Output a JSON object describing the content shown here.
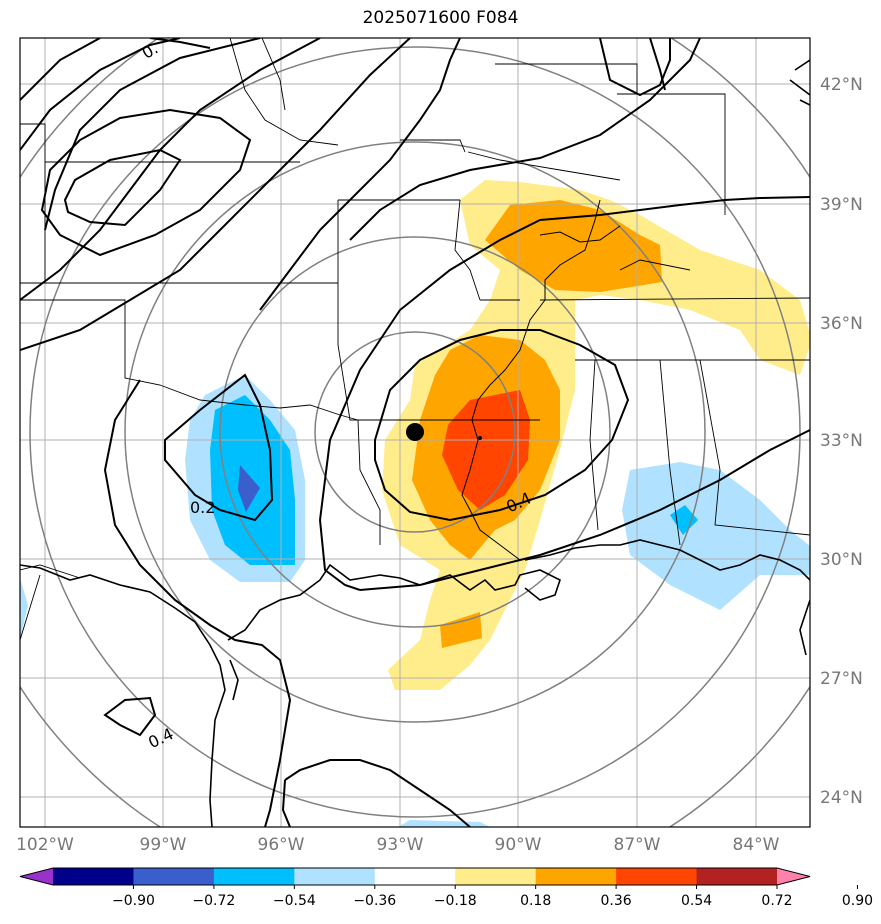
{
  "title": "2025071600 F084",
  "map": {
    "lon_labels": [
      "102°W",
      "99°W",
      "96°W",
      "93°W",
      "90°W",
      "87°W",
      "84°W"
    ],
    "lat_labels": [
      "42°N",
      "39°N",
      "36°N",
      "33°N",
      "30°N",
      "27°N",
      "24°N"
    ],
    "contour_labels": [
      "0.2",
      "0.4",
      "0.4",
      "0."
    ],
    "features": [
      "state-borders",
      "coastline",
      "gridlines",
      "black-contours",
      "gray-range-rings",
      "filled-anomaly",
      "center-marker"
    ]
  },
  "colorbar": {
    "ticks": [
      "−0.90",
      "−0.72",
      "−0.54",
      "−0.36",
      "−0.18",
      "0.18",
      "0.36",
      "0.54",
      "0.72",
      "0.90"
    ],
    "colors": [
      "#9932cc",
      "#00008b",
      "#3a5fcd",
      "#00bfff",
      "#b0e2ff",
      "#ffffff",
      "#ffec8b",
      "#ffa500",
      "#ff4500",
      "#b22222",
      "#ff82ab"
    ]
  }
}
